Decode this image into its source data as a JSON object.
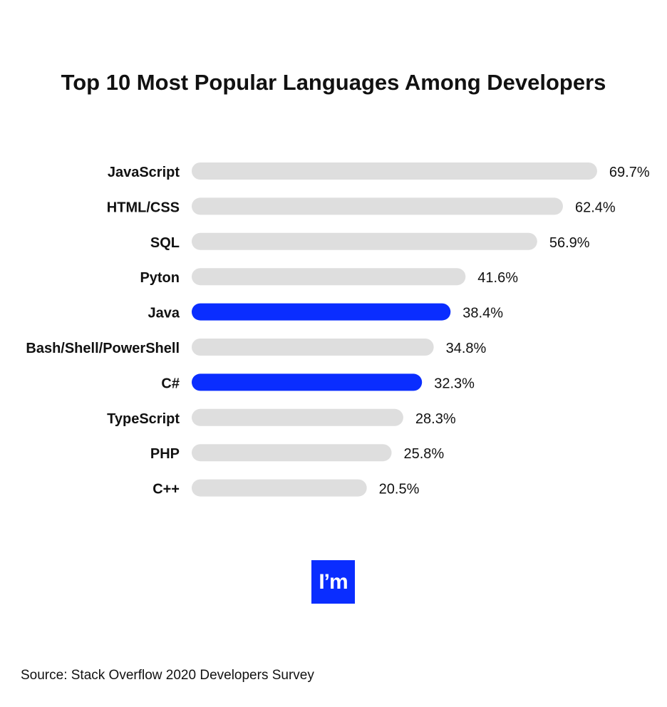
{
  "chart_data": {
    "type": "bar",
    "orientation": "horizontal",
    "title": "Top 10 Most Popular Languages Among Developers",
    "categories": [
      "JavaScript",
      "HTML/CSS",
      "SQL",
      "Pyton",
      "Java",
      "Bash/Shell/PowerShell",
      "C#",
      "TypeScript",
      "PHP",
      "C++"
    ],
    "values": [
      69.7,
      62.4,
      56.9,
      41.6,
      38.4,
      34.8,
      32.3,
      28.3,
      25.8,
      20.5
    ],
    "value_labels": [
      "69.7%",
      "62.4%",
      "56.9%",
      "41.6%",
      "38.4%",
      "34.8%",
      "32.3%",
      "28.3%",
      "25.8%",
      "20.5%"
    ],
    "highlighted": [
      "Java",
      "C#"
    ],
    "colors": {
      "default": "#dedede",
      "highlight": "#0a2dff"
    },
    "grid": false,
    "legend": "none"
  },
  "logo": {
    "text": "I’m",
    "color": "#0a2dff"
  },
  "source": "Source: Stack Overflow 2020 Developers Survey"
}
